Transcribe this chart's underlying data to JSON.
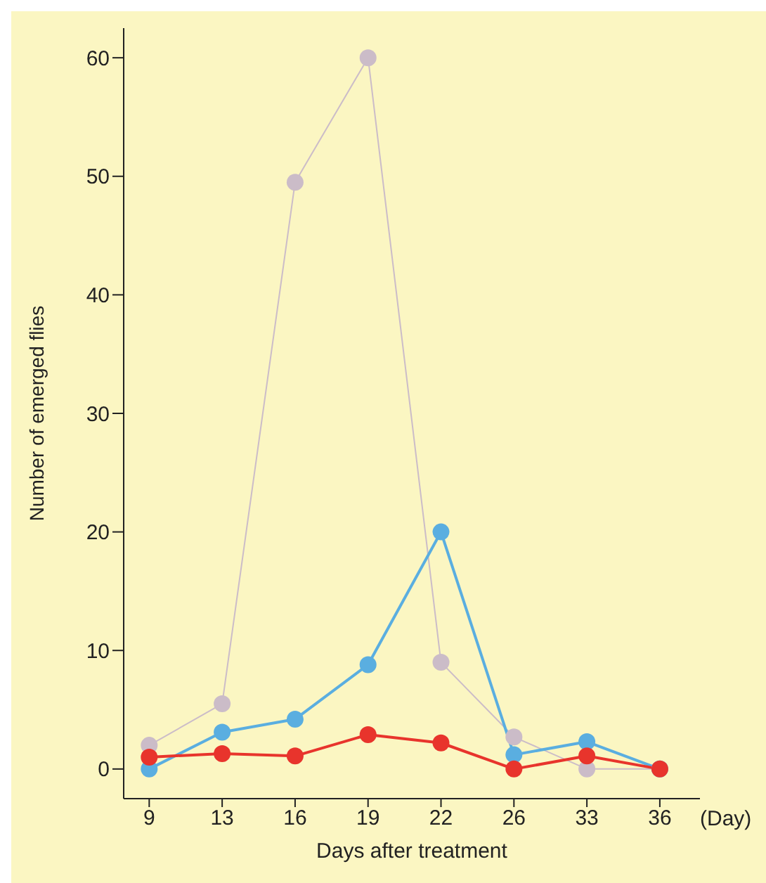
{
  "chart_data": {
    "type": "line",
    "xlabel": "Days after treatment",
    "ylabel": "Number of emerged flies",
    "categories": [
      "9",
      "13",
      "16",
      "19",
      "22",
      "26",
      "33",
      "36"
    ],
    "series": [
      {
        "color": "#cbbcc8",
        "values": [
          2,
          5.5,
          49.5,
          60,
          9,
          2.7,
          0,
          0
        ]
      },
      {
        "color": "#5aaee0",
        "values": [
          0,
          3.1,
          4.2,
          8.8,
          20,
          1.2,
          2.3,
          0
        ]
      },
      {
        "color": "#e8342c",
        "values": [
          1,
          1.3,
          1.1,
          2.9,
          2.2,
          0,
          1.1,
          0
        ]
      }
    ],
    "ylim": [
      -2.5,
      62.5
    ],
    "yticks": [
      0,
      10,
      20,
      30,
      40,
      50,
      60
    ],
    "grid": false,
    "legend": false,
    "marker": "circle",
    "line_style": "solid",
    "annotations": [
      "(Day)"
    ]
  }
}
